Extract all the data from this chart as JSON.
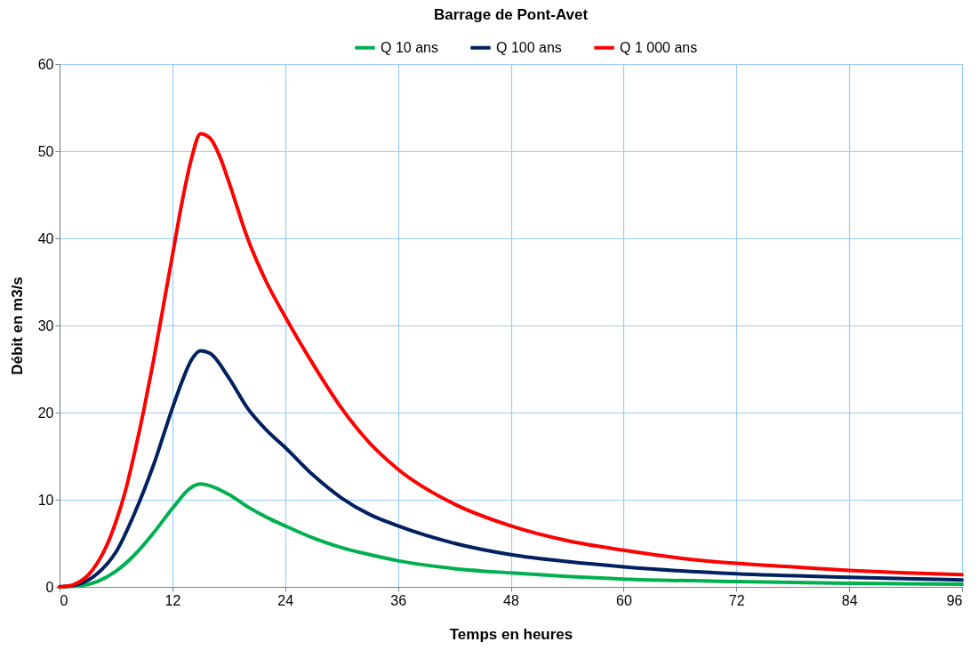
{
  "chart_data": {
    "type": "line",
    "title": "Barrage de Pont-Avet",
    "xlabel": "Temps en heures",
    "ylabel": "Débit en m3/s",
    "series": [
      {
        "name": "Q 10 ans",
        "color": "#00b050",
        "x": [
          0,
          2,
          4,
          6,
          8,
          10,
          12,
          14,
          15,
          16,
          18,
          20,
          22,
          24,
          27,
          30,
          33,
          36,
          42,
          48,
          54,
          60,
          72,
          84,
          96
        ],
        "values": [
          0,
          0.1,
          0.6,
          1.8,
          3.7,
          6.2,
          9,
          11.4,
          11.8,
          11.6,
          10.6,
          9.2,
          8,
          7,
          5.6,
          4.5,
          3.7,
          3,
          2.1,
          1.6,
          1.2,
          0.9,
          0.6,
          0.4,
          0.3
        ]
      },
      {
        "name": "Q 100 ans",
        "color": "#002060",
        "x": [
          0,
          2,
          4,
          6,
          8,
          10,
          12,
          13,
          14,
          15,
          16,
          18,
          20,
          22,
          24,
          27,
          30,
          33,
          36,
          42,
          48,
          54,
          60,
          72,
          84,
          96
        ],
        "values": [
          0,
          0.3,
          1.5,
          4,
          8.5,
          14,
          20.5,
          23.5,
          26,
          27.1,
          26.8,
          24,
          20.5,
          18,
          16,
          12.8,
          10.2,
          8.3,
          7,
          5,
          3.7,
          2.9,
          2.3,
          1.5,
          1.1,
          0.8
        ]
      },
      {
        "name": "Q 1 000 ans",
        "color": "#ff0000",
        "x": [
          0,
          1,
          2,
          3,
          4,
          5,
          6,
          7,
          8,
          9,
          10,
          11,
          12,
          13,
          14,
          15,
          16,
          17,
          18,
          20,
          22,
          24,
          27,
          30,
          33,
          36,
          42,
          48,
          54,
          60,
          66,
          72,
          78,
          84,
          90,
          96
        ],
        "values": [
          0,
          0.1,
          0.5,
          1.3,
          2.7,
          4.7,
          7.5,
          11,
          15.5,
          20.5,
          26,
          32,
          38,
          44,
          49,
          52,
          51.5,
          49.5,
          46.5,
          40,
          35,
          31,
          25.5,
          20.5,
          16.5,
          13.5,
          9.5,
          7,
          5.3,
          4.2,
          3.3,
          2.7,
          2.3,
          1.9,
          1.6,
          1.4
        ]
      }
    ],
    "xlim": [
      0,
      96
    ],
    "xticks": [
      0,
      12,
      24,
      36,
      48,
      60,
      72,
      84,
      96
    ],
    "ylim": [
      0,
      60
    ],
    "yticks": [
      0,
      10,
      20,
      30,
      40,
      50,
      60
    ],
    "grid": true,
    "legend": "top"
  }
}
